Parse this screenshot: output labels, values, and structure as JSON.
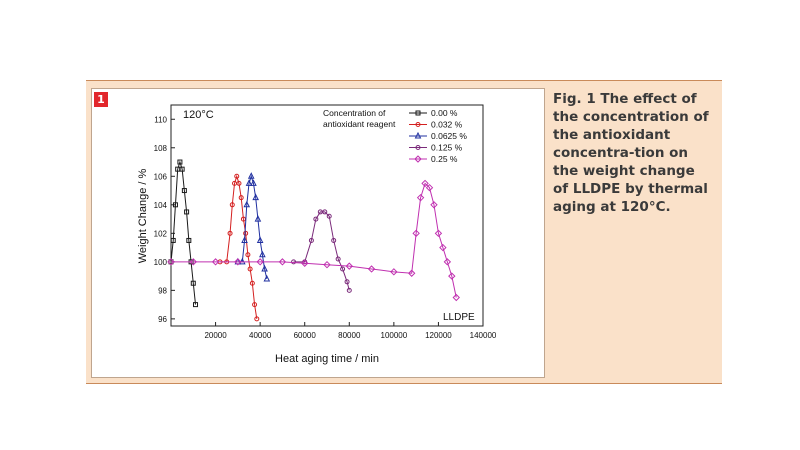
{
  "figure": {
    "number": "1",
    "caption": "Fig. 1 The effect of the concentration of the antioxidant concentra-tion on the weight change of LLDPE by thermal aging at 120°C."
  },
  "chart_data": {
    "type": "scatter",
    "temperature_label": "120°C",
    "material_label": "LLDPE",
    "xlabel": "Heat aging time / min",
    "ylabel": "Weight Change / %",
    "xlim": [
      0,
      140000
    ],
    "ylim": [
      95.5,
      111
    ],
    "xticks": [
      "20000",
      "40000",
      "60000",
      "80000",
      "100000",
      "120000",
      "140000"
    ],
    "yticks": [
      "96",
      "98",
      "100",
      "102",
      "104",
      "106",
      "108",
      "110"
    ],
    "legend": {
      "title_line1": "Concentration of",
      "title_line2": "antioxidant reagent",
      "position": "top-right"
    },
    "series": [
      {
        "name": "0.00 %",
        "color": "#1a1a1a",
        "marker": "square",
        "x": [
          0,
          1000,
          2000,
          3000,
          4000,
          5000,
          6000,
          7000,
          8000,
          9000,
          10000,
          11000
        ],
        "y": [
          100,
          101.5,
          104,
          106.5,
          107,
          106.5,
          105,
          103.5,
          101.5,
          100,
          98.5,
          97
        ]
      },
      {
        "name": "0.032 %",
        "color": "#d42020",
        "marker": "circle",
        "x": [
          22000,
          25000,
          26500,
          27500,
          28500,
          29500,
          30500,
          31500,
          32500,
          33500,
          34500,
          35500,
          36500,
          37500,
          38500
        ],
        "y": [
          100,
          100,
          102,
          104,
          105.5,
          106,
          105.5,
          104.5,
          103,
          102,
          100.5,
          99.5,
          98.5,
          97,
          96
        ]
      },
      {
        "name": "0.0625 %",
        "color": "#2030a0",
        "marker": "triangle",
        "x": [
          30000,
          32000,
          33000,
          34000,
          35000,
          36000,
          37000,
          38000,
          39000,
          40000,
          41000,
          42000,
          43000
        ],
        "y": [
          100,
          100,
          101.5,
          104,
          105.5,
          106,
          105.5,
          104.5,
          103,
          101.5,
          100.5,
          99.5,
          98.8
        ]
      },
      {
        "name": "0.125 %",
        "color": "#7a2a7a",
        "marker": "circle",
        "x": [
          55000,
          60000,
          63000,
          65000,
          67000,
          69000,
          71000,
          73000,
          75000,
          77000,
          79000,
          80000
        ],
        "y": [
          100,
          100,
          101.5,
          103,
          103.5,
          103.5,
          103.2,
          101.5,
          100.2,
          99.5,
          98.6,
          98
        ]
      },
      {
        "name": "0.25 %",
        "color": "#c030b0",
        "marker": "diamond",
        "x": [
          0,
          10000,
          20000,
          30000,
          40000,
          50000,
          60000,
          70000,
          80000,
          90000,
          100000,
          108000,
          110000,
          112000,
          114000,
          116000,
          118000,
          120000,
          122000,
          124000,
          126000,
          128000
        ],
        "y": [
          100,
          100,
          100,
          100,
          100,
          100,
          99.9,
          99.8,
          99.7,
          99.5,
          99.3,
          99.2,
          102,
          104.5,
          105.5,
          105.2,
          104,
          102,
          101,
          100,
          99,
          97.5
        ]
      }
    ]
  }
}
